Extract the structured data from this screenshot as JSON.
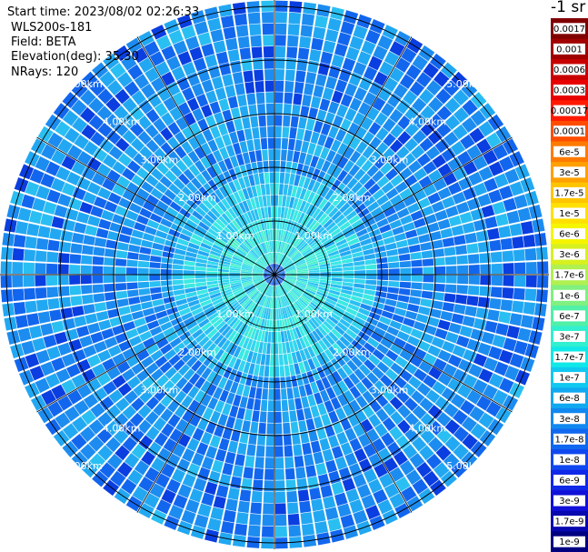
{
  "info": {
    "start_time": "Start time: 2023/08/02 02:26:33",
    "instrument": "WLS200s-181",
    "field": "Field: BETA",
    "elevation": "Elevation(deg): 35.30",
    "nrays": "NRays: 120"
  },
  "colorbar": {
    "units": "-1 sr",
    "labels": [
      "0.0017",
      "0.001",
      "0.0006",
      "0.0003",
      "0.00017",
      "0.0001",
      "6e-5",
      "3e-5",
      "1.7e-5",
      "1e-5",
      "6e-6",
      "3e-6",
      "1.7e-6",
      "1e-6",
      "6e-7",
      "3e-7",
      "1.7e-7",
      "1e-7",
      "6e-8",
      "3e-8",
      "1.7e-8",
      "1e-8",
      "6e-9",
      "3e-9",
      "1.7e-9",
      "1e-9"
    ],
    "colors": [
      "#800000",
      "#a00000",
      "#c80000",
      "#e80000",
      "#ff1a00",
      "#ff4d00",
      "#ff7a00",
      "#ffa000",
      "#ffc400",
      "#ffe000",
      "#f5f500",
      "#d8f020",
      "#b0f050",
      "#80f080",
      "#50f0a8",
      "#30f0d0",
      "#10e8e8",
      "#10c8f0",
      "#10a8f0",
      "#1088f0",
      "#1068f0",
      "#1048f0",
      "#1028e8",
      "#1010d8",
      "#0808b0",
      "#000080"
    ]
  },
  "chart_data": {
    "type": "ppi",
    "title": "",
    "nrays": 120,
    "elevation_deg": 35.3,
    "range_rings": [
      "1.00km",
      "2.00km",
      "3.00km",
      "4.00km",
      "5.00km"
    ],
    "field": "BETA",
    "scale": "log",
    "vmin": 1e-09,
    "vmax": 0.0017,
    "grid": true
  }
}
